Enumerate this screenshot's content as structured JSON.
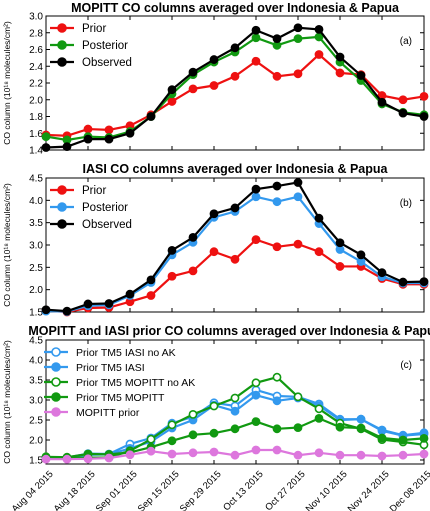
{
  "chart_data": [
    {
      "type": "line",
      "title": "MOPITT CO columns averaged over Indonesia & Papua",
      "panel_label": "(a)",
      "ylabel": "CO column (10¹⁸ molecules/cm²)",
      "ylim": [
        1.4,
        3.0
      ],
      "yticks": [
        "1.4",
        "1.6",
        "1.8",
        "2.0",
        "2.2",
        "2.4",
        "2.6",
        "2.8",
        "3.0"
      ],
      "series": [
        {
          "name": "Prior",
          "color": "#ee1111",
          "marker": "filled",
          "values": [
            1.58,
            1.57,
            1.65,
            1.64,
            1.69,
            1.82,
            1.98,
            2.13,
            2.17,
            2.28,
            2.46,
            2.28,
            2.31,
            2.54,
            2.32,
            2.3,
            2.05,
            2.0,
            2.04
          ]
        },
        {
          "name": "Posterior",
          "color": "#119911",
          "marker": "filled",
          "values": [
            1.56,
            1.52,
            1.56,
            1.55,
            1.62,
            1.8,
            2.07,
            2.3,
            2.45,
            2.57,
            2.74,
            2.65,
            2.73,
            2.75,
            2.45,
            2.23,
            1.95,
            1.85,
            1.82
          ]
        },
        {
          "name": "Observed",
          "color": "#000000",
          "marker": "filled",
          "values": [
            1.43,
            1.44,
            1.53,
            1.53,
            1.6,
            1.8,
            2.12,
            2.33,
            2.48,
            2.62,
            2.83,
            2.73,
            2.86,
            2.84,
            2.51,
            2.29,
            1.97,
            1.84,
            1.8
          ]
        }
      ],
      "legend_position": "top-left"
    },
    {
      "type": "line",
      "title": "IASI CO columns averaged over Indonesia & Papua",
      "panel_label": "(b)",
      "ylabel": "CO column (10¹⁸ molecules/cm²)",
      "ylim": [
        1.5,
        4.5
      ],
      "yticks": [
        "1.5",
        "2.0",
        "2.5",
        "3.0",
        "3.5",
        "4.0",
        "4.5"
      ],
      "series": [
        {
          "name": "Prior",
          "color": "#ee1111",
          "marker": "filled",
          "values": [
            1.53,
            1.5,
            1.59,
            1.6,
            1.73,
            1.87,
            2.3,
            2.42,
            2.85,
            2.68,
            3.12,
            2.96,
            3.02,
            2.85,
            2.52,
            2.52,
            2.25,
            2.12,
            2.12
          ]
        },
        {
          "name": "Posterior",
          "color": "#3399ee",
          "marker": "filled",
          "values": [
            1.52,
            1.51,
            1.64,
            1.66,
            1.87,
            2.16,
            2.78,
            3.06,
            3.62,
            3.75,
            4.08,
            3.97,
            4.08,
            3.48,
            2.9,
            2.63,
            2.29,
            2.15,
            2.15
          ]
        },
        {
          "name": "Observed",
          "color": "#000000",
          "marker": "filled",
          "values": [
            1.55,
            1.52,
            1.68,
            1.69,
            1.9,
            2.22,
            2.88,
            3.17,
            3.7,
            3.83,
            4.25,
            4.32,
            4.4,
            3.6,
            3.05,
            2.78,
            2.38,
            2.17,
            2.18
          ]
        }
      ],
      "legend_position": "top-left"
    },
    {
      "type": "line",
      "title": "MOPITT and IASI prior CO columns averaged over Indonesia & Papua",
      "panel_label": "(c)",
      "ylabel": "CO column (10¹⁸ molecules/cm²)",
      "ylim": [
        1.4,
        4.5
      ],
      "yticks": [
        "1.5",
        "2.0",
        "2.5",
        "3.0",
        "3.5",
        "4.0",
        "4.5"
      ],
      "series": [
        {
          "name": "Prior TM5 IASI no AK",
          "color": "#3399ee",
          "marker": "open",
          "values": [
            1.57,
            1.56,
            1.66,
            1.65,
            1.9,
            2.05,
            2.42,
            2.58,
            2.93,
            2.85,
            3.25,
            3.1,
            3.08,
            2.9,
            2.52,
            2.52,
            2.25,
            2.12,
            2.18
          ]
        },
        {
          "name": "Prior TM5 IASI",
          "color": "#3399ee",
          "marker": "filled",
          "values": [
            1.55,
            1.53,
            1.63,
            1.64,
            1.79,
            1.96,
            2.3,
            2.5,
            2.87,
            2.72,
            3.12,
            2.98,
            3.05,
            2.86,
            2.5,
            2.52,
            2.23,
            2.11,
            2.15
          ]
        },
        {
          "name": "Prior TM5 MOPITT no AK",
          "color": "#119911",
          "marker": "open",
          "values": [
            1.58,
            1.55,
            1.56,
            1.56,
            1.73,
            2.02,
            2.38,
            2.64,
            2.85,
            3.05,
            3.43,
            3.57,
            3.08,
            2.78,
            2.42,
            2.28,
            2.01,
            1.95,
            1.88
          ]
        },
        {
          "name": "Prior TM5 MOPITT",
          "color": "#119911",
          "marker": "filled",
          "values": [
            1.58,
            1.57,
            1.65,
            1.64,
            1.69,
            1.82,
            1.98,
            2.13,
            2.17,
            2.28,
            2.46,
            2.28,
            2.31,
            2.54,
            2.32,
            2.3,
            2.05,
            2.0,
            2.04
          ]
        },
        {
          "name": "MOPITT prior",
          "color": "#dd77dd",
          "marker": "filled",
          "values": [
            1.52,
            1.52,
            1.53,
            1.55,
            1.63,
            1.72,
            1.65,
            1.68,
            1.7,
            1.62,
            1.75,
            1.75,
            1.62,
            1.68,
            1.62,
            1.62,
            1.6,
            1.62,
            1.65
          ]
        }
      ],
      "legend_position": "top-left"
    }
  ],
  "x_tick_labels": [
    "Aug 04 2015",
    "Aug 18 2015",
    "Sep 01 2015",
    "Sep 15 2015",
    "Sep 29 2015",
    "Oct 13 2015",
    "Oct 27 2015",
    "Nov 10 2015",
    "Nov 24 2015",
    "Dec 08 2015"
  ],
  "x_points": [
    "2015-08-04",
    "2015-08-11",
    "2015-08-18",
    "2015-08-25",
    "2015-09-01",
    "2015-09-08",
    "2015-09-15",
    "2015-09-22",
    "2015-09-29",
    "2015-10-06",
    "2015-10-13",
    "2015-10-20",
    "2015-10-27",
    "2015-11-03",
    "2015-11-10",
    "2015-11-17",
    "2015-11-24",
    "2015-12-01",
    "2015-12-08"
  ]
}
